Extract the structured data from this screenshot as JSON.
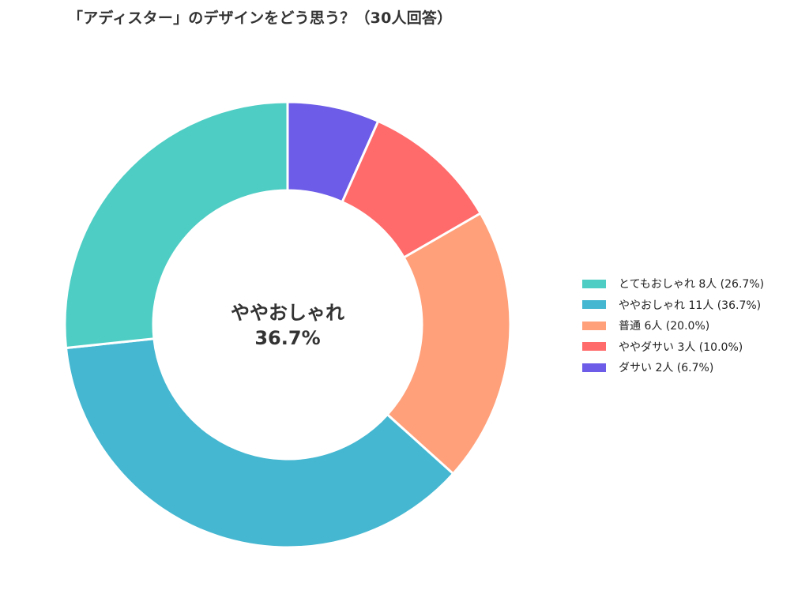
{
  "chart_data": {
    "type": "pie",
    "variant": "donut",
    "title": "「アディスター」のデザインをどう思う？（30人回答）",
    "categories": [
      "とてもおしゃれ",
      "ややおしゃれ",
      "普通",
      "ややダサい",
      "ダサい"
    ],
    "values": [
      8,
      11,
      6,
      3,
      2
    ],
    "percentages": [
      26.7,
      36.7,
      20.0,
      10.0,
      6.7
    ],
    "colors": [
      "#4ECDC4",
      "#45B7D1",
      "#FFA07A",
      "#FF6B6B",
      "#6C5CE7"
    ],
    "legend_labels": [
      "とてもおしゃれ  8人 (26.7%)",
      "ややおしゃれ  11人 (36.7%)",
      "普通  6人 (20.0%)",
      "ややダサい  3人 (10.0%)",
      "ダサい  2人 (6.7%)"
    ],
    "center_label": {
      "line1": "ややおしゃれ",
      "line2": "36.7%"
    },
    "legend_position": "right",
    "start_angle": "top",
    "direction": "clockwise",
    "slice_order": [
      "ダサい",
      "ややダサい",
      "普通",
      "ややおしゃれ",
      "とてもおしゃれ"
    ]
  }
}
